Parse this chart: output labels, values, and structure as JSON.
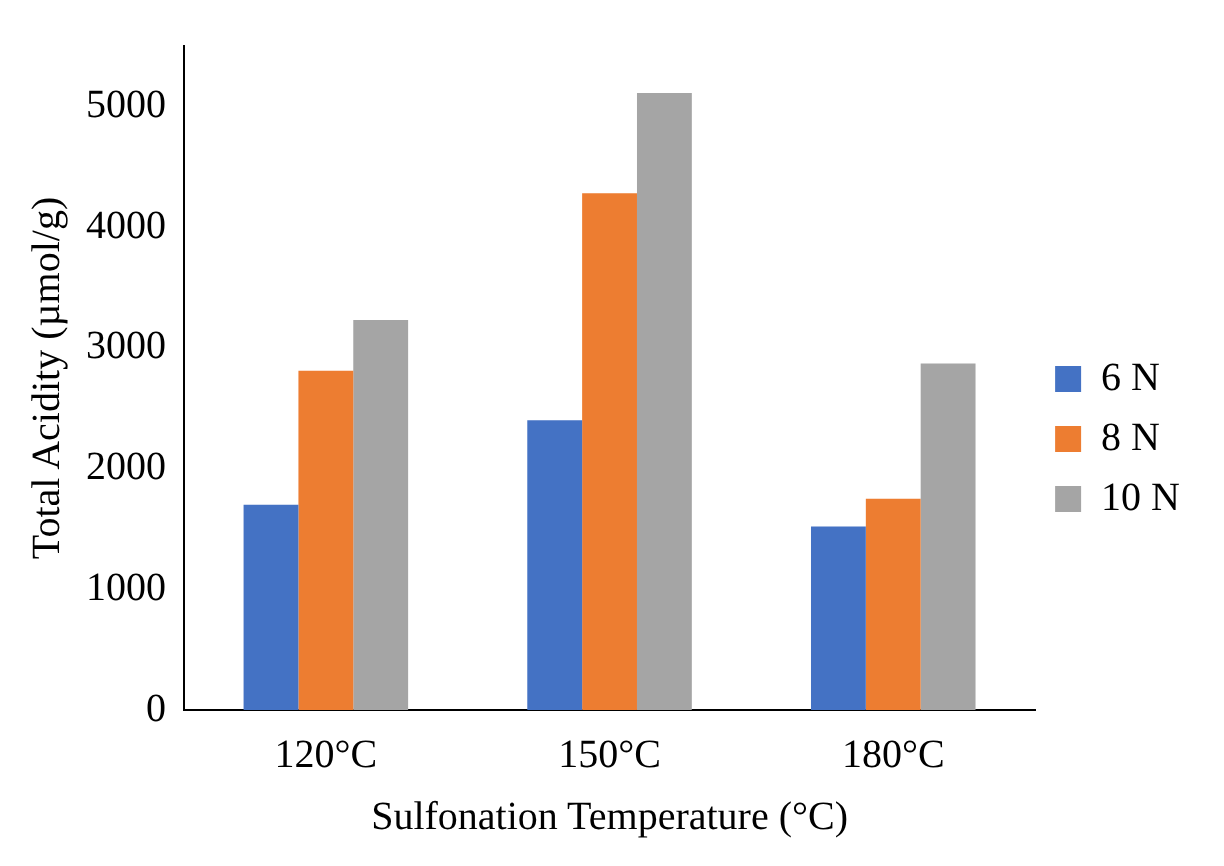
{
  "chart_data": {
    "type": "bar",
    "xlabel": "Sulfonation Temperature (°C)",
    "ylabel": "Total Acidity (µmol/g)",
    "categories": [
      "120°C",
      "150°C",
      "180°C"
    ],
    "series": [
      {
        "name": "6 N",
        "color": "#4472c4",
        "values": [
          1700,
          2400,
          1520
        ]
      },
      {
        "name": "8 N",
        "color": "#ed7d31",
        "values": [
          2810,
          4280,
          1750
        ]
      },
      {
        "name": "10 N",
        "color": "#a5a5a5",
        "values": [
          3230,
          5110,
          2870
        ]
      }
    ],
    "ylim": [
      0,
      5500
    ],
    "yticks": [
      0,
      1000,
      2000,
      3000,
      4000,
      5000
    ],
    "grid": false,
    "legend": "right"
  }
}
